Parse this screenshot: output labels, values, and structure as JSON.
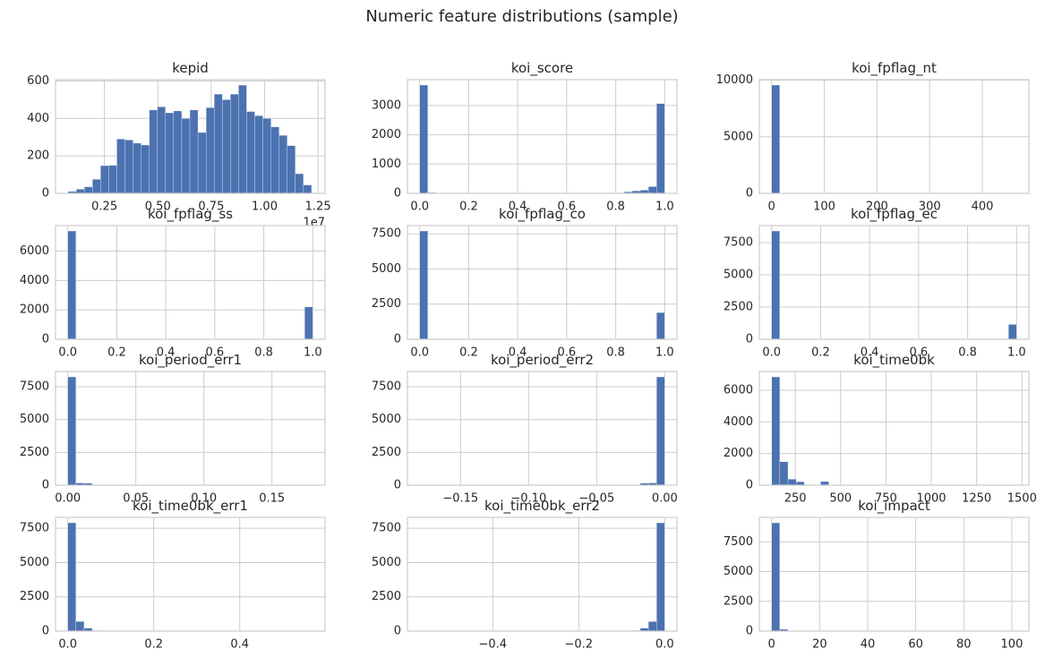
{
  "title": "Numeric feature distributions (sample)",
  "chart_data": [
    {
      "type": "histogram",
      "title": "kepid",
      "grid": true,
      "color": "#4c72b0",
      "offset_text": "1e7",
      "bins": [
        0.08,
        0.118,
        0.156,
        0.194,
        0.232,
        0.27,
        0.308,
        0.346,
        0.384,
        0.422,
        0.46,
        0.498,
        0.536,
        0.574,
        0.612,
        0.65,
        0.688,
        0.726,
        0.764,
        0.802,
        0.84,
        0.878,
        0.916,
        0.954,
        0.992,
        1.03,
        1.068,
        1.106,
        1.144,
        1.182,
        1.22
      ],
      "counts": [
        10,
        22,
        35,
        75,
        148,
        150,
        290,
        285,
        268,
        258,
        445,
        462,
        430,
        440,
        400,
        445,
        325,
        458,
        530,
        500,
        530,
        578,
        437,
        415,
        400,
        355,
        310,
        255,
        105,
        45
      ],
      "xlim": [
        0.021,
        1.283
      ],
      "xticks": [
        0.25,
        {
          "value": 0.5,
          "label": "0.50"
        },
        0.75,
        {
          "value": 1,
          "label": "1.00"
        },
        1.25
      ],
      "ylim": [
        0,
        607
      ],
      "yticks": [
        0,
        200,
        400,
        600
      ]
    },
    {
      "type": "histogram",
      "title": "koi_score",
      "grid": true,
      "color": "#4c72b0",
      "bins": [
        0,
        0.0333,
        0.0667,
        0.1,
        0.1333,
        0.1667,
        0.2,
        0.2333,
        0.2667,
        0.3,
        0.3333,
        0.3667,
        0.4,
        0.4333,
        0.4667,
        0.5,
        0.5333,
        0.5667,
        0.6,
        0.6333,
        0.6667,
        0.7,
        0.7333,
        0.7667,
        0.8,
        0.8333,
        0.8667,
        0.9,
        0.9333,
        0.9667,
        1
      ],
      "counts": [
        3700,
        30,
        15,
        10,
        8,
        8,
        5,
        5,
        5,
        5,
        5,
        5,
        5,
        5,
        5,
        5,
        5,
        5,
        5,
        5,
        8,
        8,
        10,
        12,
        20,
        55,
        85,
        110,
        230,
        3070
      ],
      "xlim": [
        -0.05,
        1.05
      ],
      "xticks": [
        {
          "value": 0,
          "label": "0.0"
        },
        0.2,
        0.4,
        0.6,
        0.8,
        {
          "value": 1,
          "label": "1.0"
        }
      ],
      "ylim": [
        0,
        3885
      ],
      "yticks": [
        0,
        1000,
        2000,
        3000
      ]
    },
    {
      "type": "histogram",
      "title": "koi_fpflag_nt",
      "grid": true,
      "color": "#4c72b0",
      "bins": [
        0,
        15.5,
        31,
        46.5,
        62,
        77.5,
        93,
        108.5,
        124,
        139.5,
        155,
        170.5,
        186,
        201.5,
        217,
        232.5,
        248,
        263.5,
        279,
        294.5,
        310,
        325.5,
        341,
        356.5,
        372,
        387.5,
        403,
        418.5,
        434,
        449.5,
        465
      ],
      "counts": [
        9564,
        0,
        0,
        0,
        0,
        0,
        0,
        0,
        0,
        0,
        0,
        0,
        0,
        0,
        0,
        0,
        0,
        0,
        0,
        0,
        0,
        0,
        0,
        0,
        0,
        0,
        0,
        0,
        0,
        1
      ],
      "xlim": [
        -23.25,
        488.25
      ],
      "xticks": [
        0,
        100,
        200,
        300,
        400
      ],
      "ylim": [
        0,
        10042
      ],
      "yticks": [
        0,
        5000,
        10000
      ]
    },
    {
      "type": "histogram",
      "title": "koi_fpflag_ss",
      "grid": true,
      "color": "#4c72b0",
      "bins": [
        0,
        0.0333,
        0.0667,
        0.1,
        0.1333,
        0.1667,
        0.2,
        0.2333,
        0.2667,
        0.3,
        0.3333,
        0.3667,
        0.4,
        0.4333,
        0.4667,
        0.5,
        0.5333,
        0.5667,
        0.6,
        0.6333,
        0.6667,
        0.7,
        0.7333,
        0.7667,
        0.8,
        0.8333,
        0.8667,
        0.9,
        0.9333,
        0.9667,
        1
      ],
      "counts": [
        7370,
        0,
        0,
        0,
        0,
        0,
        0,
        0,
        0,
        0,
        0,
        0,
        0,
        0,
        0,
        0,
        0,
        0,
        0,
        0,
        0,
        0,
        0,
        0,
        0,
        0,
        0,
        0,
        0,
        2200
      ],
      "xlim": [
        -0.05,
        1.05
      ],
      "xticks": [
        {
          "value": 0,
          "label": "0.0"
        },
        0.2,
        0.4,
        0.6,
        0.8,
        {
          "value": 1,
          "label": "1.0"
        }
      ],
      "ylim": [
        0,
        7739
      ],
      "yticks": [
        0,
        2000,
        4000,
        6000
      ]
    },
    {
      "type": "histogram",
      "title": "koi_fpflag_co",
      "grid": true,
      "color": "#4c72b0",
      "bins": [
        0,
        0.0333,
        0.0667,
        0.1,
        0.1333,
        0.1667,
        0.2,
        0.2333,
        0.2667,
        0.3,
        0.3333,
        0.3667,
        0.4,
        0.4333,
        0.4667,
        0.5,
        0.5333,
        0.5667,
        0.6,
        0.6333,
        0.6667,
        0.7,
        0.7333,
        0.7667,
        0.8,
        0.8333,
        0.8667,
        0.9,
        0.9333,
        0.9667,
        1
      ],
      "counts": [
        7700,
        0,
        0,
        0,
        0,
        0,
        0,
        0,
        0,
        0,
        0,
        0,
        0,
        0,
        0,
        0,
        0,
        0,
        0,
        0,
        0,
        0,
        0,
        0,
        0,
        0,
        0,
        0,
        0,
        1900
      ],
      "xlim": [
        -0.05,
        1.05
      ],
      "xticks": [
        {
          "value": 0,
          "label": "0.0"
        },
        0.2,
        0.4,
        0.6,
        0.8,
        {
          "value": 1,
          "label": "1.0"
        }
      ],
      "ylim": [
        0,
        8085
      ],
      "yticks": [
        0,
        2500,
        5000,
        7500
      ]
    },
    {
      "type": "histogram",
      "title": "koi_fpflag_ec",
      "grid": true,
      "color": "#4c72b0",
      "bins": [
        0,
        0.0333,
        0.0667,
        0.1,
        0.1333,
        0.1667,
        0.2,
        0.2333,
        0.2667,
        0.3,
        0.3333,
        0.3667,
        0.4,
        0.4333,
        0.4667,
        0.5,
        0.5333,
        0.5667,
        0.6,
        0.6333,
        0.6667,
        0.7,
        0.7333,
        0.7667,
        0.8,
        0.8333,
        0.8667,
        0.9,
        0.9333,
        0.9667,
        1
      ],
      "counts": [
        8400,
        0,
        0,
        0,
        0,
        0,
        0,
        0,
        0,
        0,
        0,
        0,
        0,
        0,
        0,
        0,
        0,
        0,
        0,
        0,
        0,
        0,
        0,
        0,
        0,
        0,
        0,
        0,
        0,
        1150
      ],
      "xlim": [
        -0.05,
        1.05
      ],
      "xticks": [
        {
          "value": 0,
          "label": "0.0"
        },
        0.2,
        0.4,
        0.6,
        0.8,
        {
          "value": 1,
          "label": "1.0"
        }
      ],
      "ylim": [
        0,
        8820
      ],
      "yticks": [
        0,
        2500,
        5000,
        7500
      ]
    },
    {
      "type": "histogram",
      "title": "koi_period_err1",
      "grid": true,
      "color": "#4c72b0",
      "bins": [
        0,
        0.006,
        0.012,
        0.018,
        0.024,
        0.03,
        0.036,
        0.042,
        0.048,
        0.054,
        0.06,
        0.066,
        0.072,
        0.078,
        0.084,
        0.09,
        0.096,
        0.102,
        0.108,
        0.114,
        0.12,
        0.126,
        0.132,
        0.138,
        0.144,
        0.15,
        0.156,
        0.162,
        0.168,
        0.174,
        0.18
      ],
      "counts": [
        8250,
        170,
        150,
        30,
        10,
        5,
        3,
        2,
        1,
        1,
        1,
        0,
        0,
        0,
        0,
        0,
        0,
        0,
        0,
        0,
        0,
        0,
        0,
        0,
        0,
        0,
        0,
        0,
        0,
        1
      ],
      "xlim": [
        -0.009,
        0.189
      ],
      "xticks": [
        {
          "value": 0,
          "label": "0.00"
        },
        0.05,
        {
          "value": 0.1,
          "label": "0.10"
        },
        0.15
      ],
      "ylim": [
        0,
        8662
      ],
      "yticks": [
        0,
        2500,
        5000,
        7500
      ]
    },
    {
      "type": "histogram",
      "title": "koi_period_err2",
      "grid": true,
      "color": "#4c72b0",
      "bins": [
        -0.18,
        -0.174,
        -0.168,
        -0.162,
        -0.156,
        -0.15,
        -0.144,
        -0.138,
        -0.132,
        -0.126,
        -0.12,
        -0.114,
        -0.108,
        -0.102,
        -0.096,
        -0.09,
        -0.084,
        -0.078,
        -0.072,
        -0.066,
        -0.06,
        -0.054,
        -0.048,
        -0.042,
        -0.036,
        -0.03,
        -0.024,
        -0.018,
        -0.012,
        -0.006,
        0
      ],
      "counts": [
        1,
        0,
        0,
        0,
        0,
        0,
        0,
        0,
        0,
        0,
        0,
        0,
        0,
        0,
        0,
        0,
        0,
        0,
        0,
        1,
        1,
        1,
        2,
        3,
        5,
        10,
        30,
        150,
        170,
        8250
      ],
      "xlim": [
        -0.189,
        0.009
      ],
      "xticks": [
        {
          "value": -0.15,
          "label": "−0.15"
        },
        {
          "value": -0.1,
          "label": "−0.10"
        },
        {
          "value": -0.05,
          "label": "−0.05"
        },
        {
          "value": 0,
          "label": "0.00"
        }
      ],
      "ylim": [
        0,
        8662
      ],
      "yticks": [
        0,
        2500,
        5000,
        7500
      ]
    },
    {
      "type": "histogram",
      "title": "koi_time0bk",
      "grid": true,
      "color": "#4c72b0",
      "bins": [
        120,
        165,
        210,
        255,
        300,
        345,
        390,
        435,
        480,
        525,
        570,
        615,
        660,
        705,
        750,
        795,
        840,
        885,
        930,
        975,
        1020,
        1065,
        1110,
        1155,
        1200,
        1245,
        1290,
        1335,
        1380,
        1425,
        1470
      ],
      "counts": [
        6850,
        1480,
        380,
        220,
        40,
        20,
        230,
        10,
        5,
        5,
        3,
        2,
        1,
        1,
        1,
        1,
        0,
        0,
        0,
        0,
        0,
        0,
        0,
        0,
        0,
        0,
        0,
        0,
        0,
        1
      ],
      "xlim": [
        52,
        1538
      ],
      "xticks": [
        250,
        500,
        750,
        1000,
        1250,
        1500
      ],
      "ylim": [
        0,
        7192
      ],
      "yticks": [
        0,
        2000,
        4000,
        6000
      ]
    },
    {
      "type": "histogram",
      "title": "koi_time0bk_err1",
      "grid": true,
      "color": "#4c72b0",
      "bins": [
        0,
        0.019,
        0.038,
        0.057,
        0.076,
        0.095,
        0.114,
        0.133,
        0.152,
        0.171,
        0.19,
        0.209,
        0.228,
        0.247,
        0.266,
        0.285,
        0.304,
        0.323,
        0.342,
        0.361,
        0.38,
        0.399,
        0.418,
        0.437,
        0.456,
        0.475,
        0.494,
        0.513,
        0.532,
        0.551,
        0.57
      ],
      "counts": [
        7900,
        700,
        220,
        50,
        20,
        10,
        5,
        3,
        2,
        1,
        1,
        1,
        0,
        0,
        0,
        0,
        0,
        0,
        0,
        0,
        0,
        0,
        0,
        0,
        0,
        0,
        0,
        0,
        0,
        1
      ],
      "xlim": [
        -0.0285,
        0.5985
      ],
      "xticks": [
        {
          "value": 0,
          "label": "0.0"
        },
        0.2,
        0.4
      ],
      "ylim": [
        0,
        8295
      ],
      "yticks": [
        0,
        2500,
        5000,
        7500
      ]
    },
    {
      "type": "histogram",
      "title": "koi_time0bk_err2",
      "grid": true,
      "color": "#4c72b0",
      "bins": [
        -0.57,
        -0.551,
        -0.532,
        -0.513,
        -0.494,
        -0.475,
        -0.456,
        -0.437,
        -0.418,
        -0.399,
        -0.38,
        -0.361,
        -0.342,
        -0.323,
        -0.304,
        -0.285,
        -0.266,
        -0.247,
        -0.228,
        -0.209,
        -0.19,
        -0.171,
        -0.152,
        -0.133,
        -0.114,
        -0.095,
        -0.076,
        -0.057,
        -0.038,
        -0.019,
        0
      ],
      "counts": [
        1,
        0,
        0,
        0,
        0,
        0,
        0,
        0,
        0,
        0,
        0,
        0,
        0,
        0,
        0,
        0,
        0,
        0,
        1,
        1,
        1,
        2,
        3,
        5,
        10,
        20,
        50,
        220,
        700,
        7900
      ],
      "xlim": [
        -0.5985,
        0.0285
      ],
      "xticks": [
        {
          "value": -0.4,
          "label": "−0.4"
        },
        {
          "value": -0.2,
          "label": "−0.2"
        },
        {
          "value": 0,
          "label": "0.0"
        }
      ],
      "ylim": [
        0,
        8295
      ],
      "yticks": [
        0,
        2500,
        5000,
        7500
      ]
    },
    {
      "type": "histogram",
      "title": "koi_impact",
      "grid": true,
      "color": "#4c72b0",
      "bins": [
        0,
        3.4,
        6.8,
        10.2,
        13.6,
        17,
        20.4,
        23.8,
        27.2,
        30.6,
        34,
        37.4,
        40.8,
        44.2,
        47.6,
        51,
        54.4,
        57.8,
        61.2,
        64.6,
        68,
        71.4,
        74.8,
        78.2,
        81.6,
        85,
        88.4,
        91.8,
        95.2,
        98.6,
        102
      ],
      "counts": [
        9100,
        150,
        50,
        20,
        10,
        5,
        3,
        2,
        1,
        1,
        1,
        0,
        0,
        0,
        0,
        0,
        0,
        0,
        0,
        0,
        0,
        0,
        0,
        0,
        0,
        0,
        0,
        0,
        0,
        1
      ],
      "xlim": [
        -5.1,
        107.1
      ],
      "xticks": [
        0,
        20,
        40,
        60,
        80,
        100
      ],
      "ylim": [
        0,
        9555
      ],
      "yticks": [
        0,
        2500,
        5000,
        7500
      ]
    }
  ]
}
